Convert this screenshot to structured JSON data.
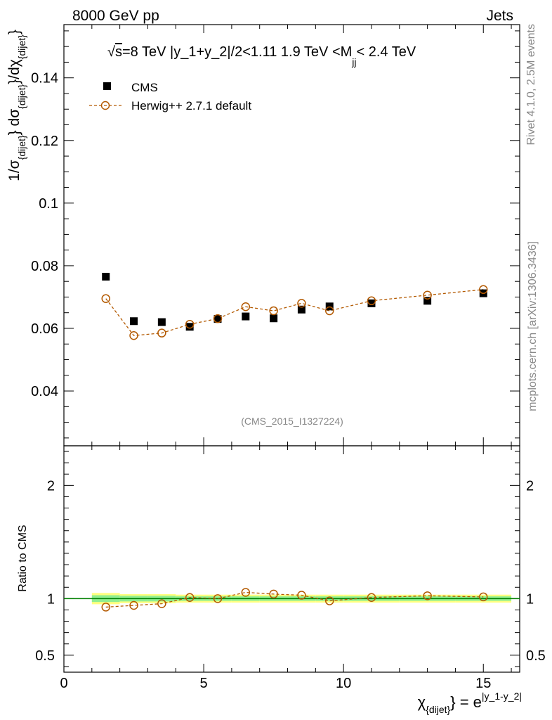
{
  "header": {
    "left": "8000 GeV pp",
    "right": "Jets"
  },
  "side_labels": {
    "rivet": "Rivet 4.1.0,  2.5M events",
    "mcplots": "mcplots.cern.ch [arXiv:1306.3436]"
  },
  "chart_data": {
    "type": "scatter",
    "title_parts": {
      "sqrt": "√",
      "s": "s",
      "main": "=8 TeV |y_1+y_2|/2<1.11 1.9 TeV <M",
      "sub": "jj",
      "tail": "< 2.4 TeV"
    },
    "watermark": "(CMS_2015_I1327224)",
    "xlabel": {
      "chi": "χ",
      "chi_sub": "{dijet}",
      "eq": "} = e",
      "exp": "|y_1-y_2|"
    },
    "ylabel": {
      "pre": "1/σ",
      "sub1": "{dijet}",
      "mid1": "} dσ",
      "sub2": "{dijet}",
      "mid2": "}/dχ",
      "sub3": "{dijet}",
      "end": "}"
    },
    "ratio_ylabel": "Ratio to CMS",
    "xlim": [
      0,
      16.3
    ],
    "ylim": [
      0.0225,
      0.157
    ],
    "ratio_ylim": [
      0.35,
      2.35
    ],
    "x_ticks": [
      0,
      5,
      10,
      15
    ],
    "x_tick_labels": [
      "0",
      "5",
      "10",
      "15"
    ],
    "y_ticks": [
      0.04,
      0.06,
      0.08,
      0.1,
      0.12,
      0.14
    ],
    "y_tick_labels": [
      "0.04",
      "0.06",
      "0.08",
      "0.1",
      "0.12",
      "0.14"
    ],
    "ratio_ticks": [
      0.5,
      1,
      2
    ],
    "ratio_tick_labels": [
      "0.5",
      "1",
      "2"
    ],
    "x_bin_edges": [
      1,
      2,
      3,
      4,
      5,
      6,
      7,
      8,
      9,
      10,
      12,
      14,
      16
    ],
    "x": [
      1.5,
      2.5,
      3.5,
      4.5,
      5.5,
      6.5,
      7.5,
      8.5,
      9.5,
      11,
      13,
      15
    ],
    "legend": {
      "position": "top-left",
      "entries": [
        "CMS",
        "Herwig++ 2.7.1 default"
      ]
    },
    "series": [
      {
        "name": "CMS",
        "values": [
          0.0765,
          0.0623,
          0.062,
          0.0605,
          0.063,
          0.0638,
          0.0632,
          0.066,
          0.067,
          0.068,
          0.0688,
          0.0712
        ]
      },
      {
        "name": "Herwig++ 2.7.1 default",
        "values": [
          0.0695,
          0.0577,
          0.0585,
          0.0613,
          0.0631,
          0.0669,
          0.0656,
          0.068,
          0.0656,
          0.0688,
          0.0706,
          0.0724
        ]
      }
    ],
    "ratio": [
      0.925,
      0.94,
      0.955,
      1.01,
      1.0,
      1.055,
      1.04,
      1.03,
      0.98,
      1.01,
      1.025,
      1.015
    ],
    "ratio_band": {
      "green_halfwidth": [
        0.03,
        0.025,
        0.025,
        0.02,
        0.02,
        0.02,
        0.02,
        0.02,
        0.02,
        0.02,
        0.02,
        0.02
      ],
      "yellow_halfwidth": [
        0.05,
        0.04,
        0.04,
        0.035,
        0.035,
        0.035,
        0.035,
        0.035,
        0.035,
        0.035,
        0.035,
        0.035
      ]
    },
    "colors": {
      "data": "#000000",
      "mc": "#b35900",
      "band_green": "#90ee90",
      "band_yellow": "#ffff80",
      "ratio_line": "#008000"
    }
  }
}
